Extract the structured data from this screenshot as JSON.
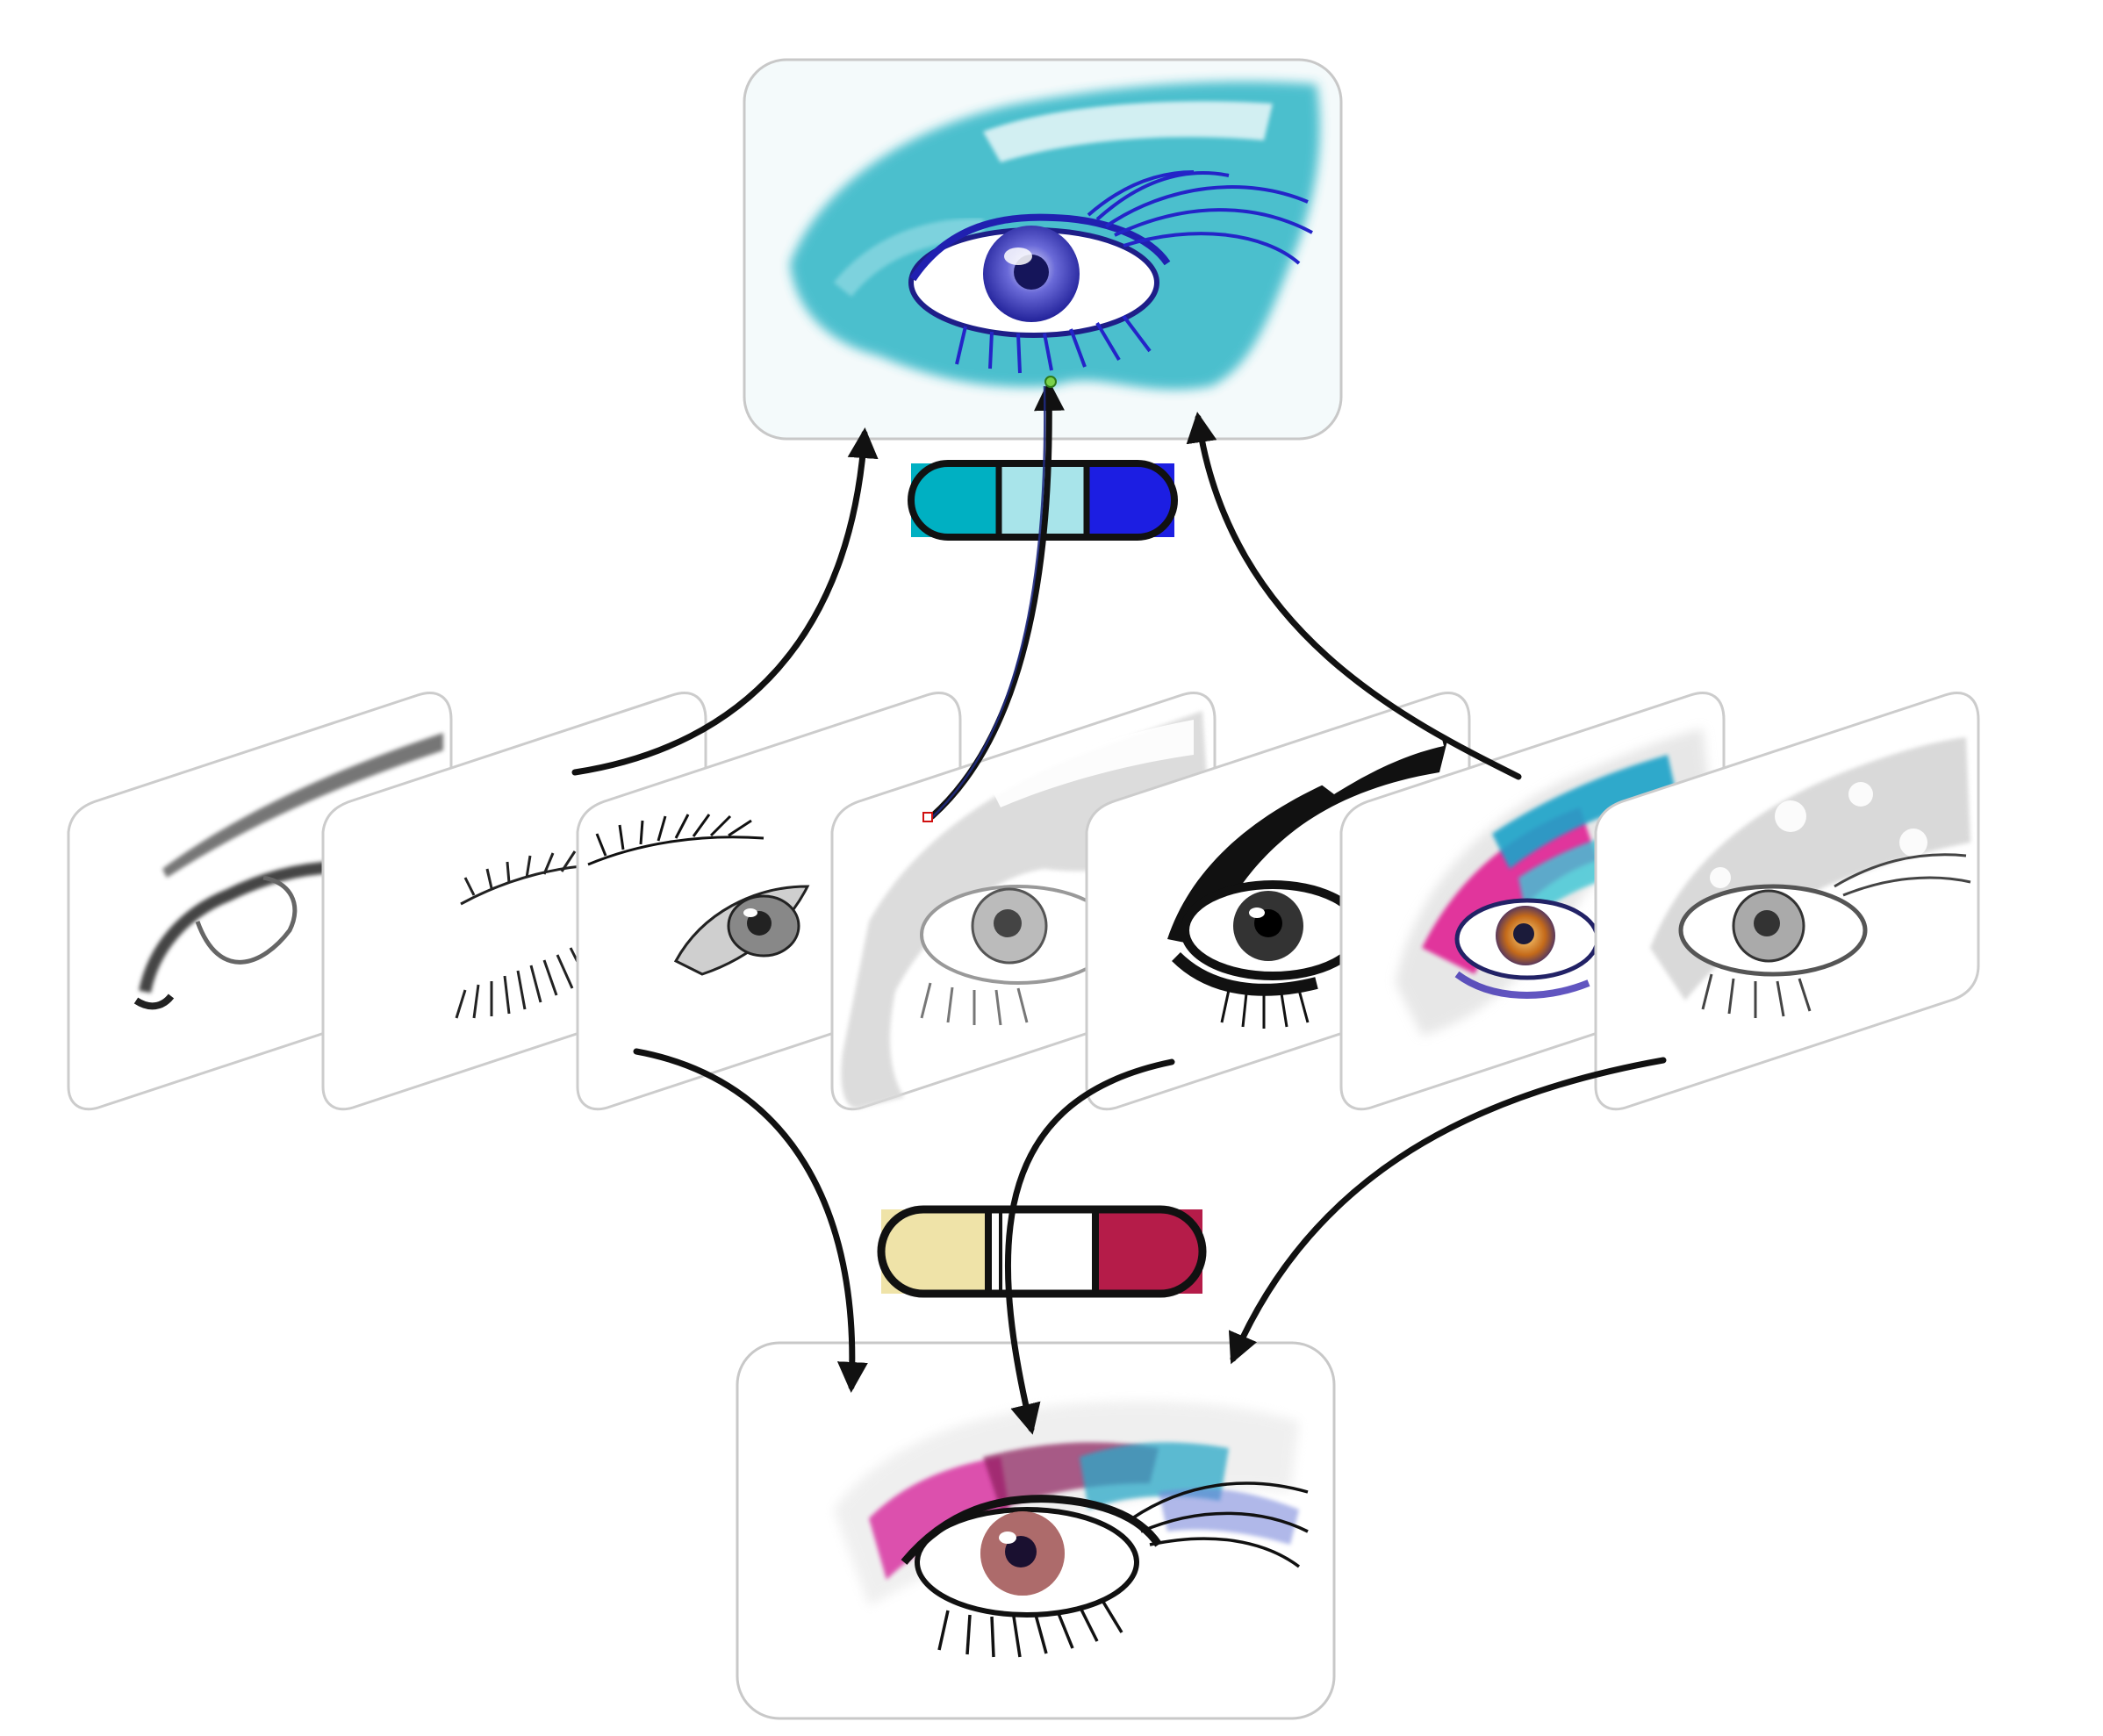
{
  "colors": {
    "background": "#ffffff",
    "panel_fill": "#f2f9fa",
    "panel_stroke": "#c8c8c8",
    "card_fill": "#ffffff",
    "card_stroke": "#cccccc",
    "arrow": "#111111",
    "accent_line": "#1f2a80",
    "teal": "#17a9bd",
    "teal_light": "#5ccfdc",
    "ink": "#111111",
    "blue": "#2321d8"
  },
  "top_palette": [
    "#00b0c2",
    "#a8e4ea",
    "#1c1ee2"
  ],
  "bottom_palette": [
    "#efe3a8",
    "#ffffff",
    "#b51c49"
  ],
  "layers": [
    {
      "name": "eyebrow-outline-layer"
    },
    {
      "name": "eyelash-layer"
    },
    {
      "name": "iris-detail-layer"
    },
    {
      "name": "gray-shading-layer"
    },
    {
      "name": "black-ink-layer"
    },
    {
      "name": "color-splash-layer"
    },
    {
      "name": "gray-texture-layer"
    }
  ]
}
